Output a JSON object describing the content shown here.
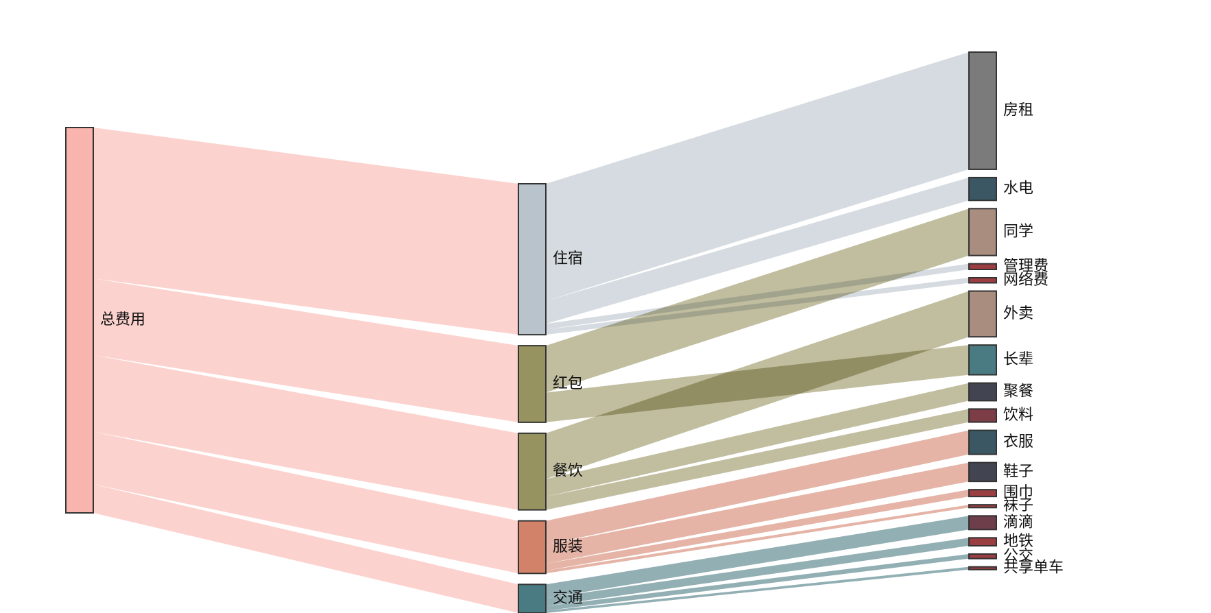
{
  "chart_data": {
    "type": "sankey",
    "title": "",
    "columns": [
      [
        "总费用"
      ],
      [
        "住宿",
        "红包",
        "餐饮",
        "服装",
        "交通"
      ],
      [
        "房租",
        "水电",
        "同学",
        "管理费",
        "网络费",
        "外卖",
        "长辈",
        "聚餐",
        "饮料",
        "衣服",
        "鞋子",
        "围巾",
        "袜子",
        "滴滴",
        "地铁",
        "公交",
        "共享单车"
      ]
    ],
    "nodes": [
      {
        "name": "总费用",
        "color": "#fab4ae"
      },
      {
        "name": "住宿",
        "color": "#b9c3cb"
      },
      {
        "name": "红包",
        "color": "#979360"
      },
      {
        "name": "餐饮",
        "color": "#979360"
      },
      {
        "name": "服装",
        "color": "#d3826a"
      },
      {
        "name": "交通",
        "color": "#4a7a82"
      },
      {
        "name": "房租",
        "color": "#7b7b7b"
      },
      {
        "name": "水电",
        "color": "#3a5763"
      },
      {
        "name": "同学",
        "color": "#a98e80"
      },
      {
        "name": "管理费",
        "color": "#9b3e42"
      },
      {
        "name": "网络费",
        "color": "#9b3e42"
      },
      {
        "name": "外卖",
        "color": "#a98e80"
      },
      {
        "name": "长辈",
        "color": "#4a7a82"
      },
      {
        "name": "聚餐",
        "color": "#434451"
      },
      {
        "name": "饮料",
        "color": "#7c3d47"
      },
      {
        "name": "衣服",
        "color": "#3a5763"
      },
      {
        "name": "鞋子",
        "color": "#434451"
      },
      {
        "name": "围巾",
        "color": "#9b3e42"
      },
      {
        "name": "袜子",
        "color": "#9b3e42"
      },
      {
        "name": "滴滴",
        "color": "#6e3e4a"
      },
      {
        "name": "地铁",
        "color": "#9b3e42"
      },
      {
        "name": "公交",
        "color": "#9b3e42"
      },
      {
        "name": "共享单车",
        "color": "#9b3e42"
      }
    ],
    "links": [
      {
        "source": "总费用",
        "target": "住宿",
        "value": 2640
      },
      {
        "source": "总费用",
        "target": "红包",
        "value": 1340
      },
      {
        "source": "总费用",
        "target": "餐饮",
        "value": 1340
      },
      {
        "source": "总费用",
        "target": "服装",
        "value": 920
      },
      {
        "source": "总费用",
        "target": "交通",
        "value": 500
      },
      {
        "source": "住宿",
        "target": "房租",
        "value": 2050
      },
      {
        "source": "住宿",
        "target": "水电",
        "value": 400
      },
      {
        "source": "住宿",
        "target": "管理费",
        "value": 100
      },
      {
        "source": "住宿",
        "target": "网络费",
        "value": 90
      },
      {
        "source": "红包",
        "target": "同学",
        "value": 820
      },
      {
        "source": "红包",
        "target": "长辈",
        "value": 520
      },
      {
        "source": "餐饮",
        "target": "外卖",
        "value": 800
      },
      {
        "source": "餐饮",
        "target": "聚餐",
        "value": 310
      },
      {
        "source": "餐饮",
        "target": "饮料",
        "value": 230
      },
      {
        "source": "服装",
        "target": "衣服",
        "value": 420
      },
      {
        "source": "服装",
        "target": "鞋子",
        "value": 330
      },
      {
        "source": "服装",
        "target": "围巾",
        "value": 120
      },
      {
        "source": "服装",
        "target": "袜子",
        "value": 50
      },
      {
        "source": "交通",
        "target": "滴滴",
        "value": 240
      },
      {
        "source": "交通",
        "target": "地铁",
        "value": 140
      },
      {
        "source": "交通",
        "target": "公交",
        "value": 80
      },
      {
        "source": "交通",
        "target": "共享单车",
        "value": 40
      }
    ]
  }
}
